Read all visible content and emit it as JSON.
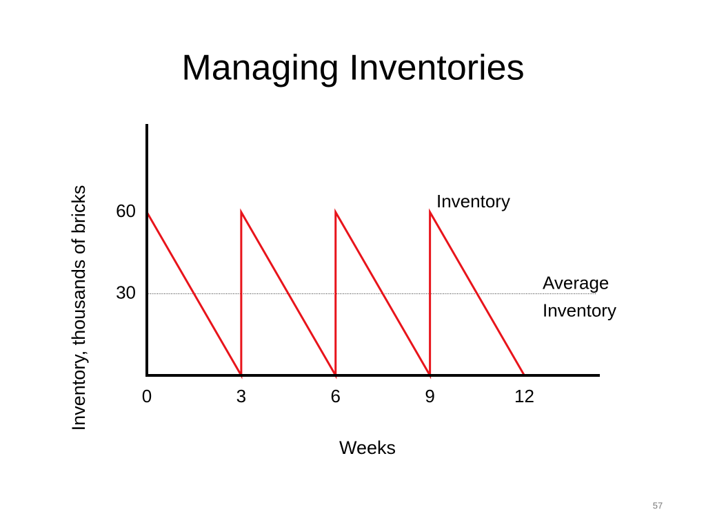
{
  "chart_data": {
    "type": "line",
    "title": "Managing Inventories",
    "x_label": "Weeks",
    "y_label": "Inventory, thousands of bricks",
    "series": [
      {
        "name": "Inventory",
        "color": "#e8141b",
        "x": [
          0,
          3,
          3,
          6,
          6,
          9,
          9,
          12
        ],
        "values": [
          60,
          0,
          60,
          0,
          60,
          0,
          60,
          0
        ]
      }
    ],
    "reference_line": {
      "value": 30,
      "label": [
        "Average",
        "Inventory"
      ]
    },
    "xlim": [
      0,
      14.4
    ],
    "ylim": [
      0,
      92.4
    ],
    "xticks": [
      0,
      3,
      6,
      9,
      12
    ],
    "yticks": [
      30,
      60
    ]
  },
  "slide_number": 57
}
